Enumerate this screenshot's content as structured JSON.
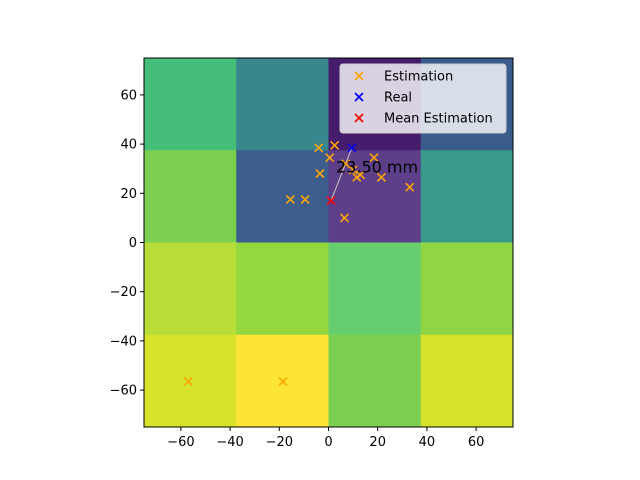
{
  "chart_data": {
    "type": "heatmap",
    "title": "",
    "xlabel": "",
    "ylabel": "",
    "xlim": [
      -75,
      75
    ],
    "ylim": [
      -75,
      75
    ],
    "x_ticks": [
      -60,
      -40,
      -20,
      0,
      20,
      40,
      60
    ],
    "y_ticks": [
      -60,
      -40,
      -20,
      0,
      20,
      40,
      60
    ],
    "x_tick_labels": [
      "−60",
      "−40",
      "−20",
      "0",
      "20",
      "40",
      "60"
    ],
    "y_tick_labels": [
      "−60",
      "−40",
      "−20",
      "0",
      "20",
      "40",
      "60"
    ],
    "grid": false,
    "heatmap": {
      "x_edges": [
        -75,
        -37.5,
        0,
        37.5,
        75
      ],
      "y_edges": [
        75,
        37.5,
        0,
        -37.5,
        -75
      ],
      "cell_colors": [
        [
          "#44be79",
          "#38878d",
          "#461c6d",
          "#3a5c8c"
        ],
        [
          "#7bd052",
          "#3d5e8d",
          "#5c3e89",
          "#389b8a"
        ],
        [
          "#b9dd38",
          "#94d840",
          "#66ce6e",
          "#8fd544"
        ],
        [
          "#d7e22b",
          "#fce534",
          "#7bd052",
          "#d7e22b"
        ]
      ]
    },
    "series": [
      {
        "name": "Estimation",
        "marker": "x",
        "color": "#ffa500",
        "points": [
          [
            -4,
            38.5
          ],
          [
            2.5,
            39.5
          ],
          [
            0.5,
            34.5
          ],
          [
            -3.5,
            28
          ],
          [
            7,
            32
          ],
          [
            10,
            29.5
          ],
          [
            13,
            27.5
          ],
          [
            11.5,
            26.5
          ],
          [
            18.5,
            34.5
          ],
          [
            21.5,
            26.5
          ],
          [
            33,
            22.5
          ],
          [
            -15.5,
            17.5
          ],
          [
            -9.5,
            17.5
          ],
          [
            6.5,
            10
          ],
          [
            -57,
            -56.5
          ],
          [
            -18.5,
            -56.5
          ]
        ]
      },
      {
        "name": "Real",
        "marker": "x",
        "color": "#0000ff",
        "points": [
          [
            9.5,
            38.5
          ]
        ]
      },
      {
        "name": "Mean Estimation",
        "marker": "x",
        "color": "#ff0000",
        "points": [
          [
            1,
            17
          ]
        ]
      }
    ],
    "annotation": {
      "text": "23.50 mm",
      "line_from": [
        1,
        17
      ],
      "line_to": [
        9.5,
        38.5
      ],
      "anchor": [
        5.5,
        30.5
      ]
    },
    "legend": {
      "placement": "upper-right",
      "entries": [
        "Estimation",
        "Real",
        "Mean Estimation"
      ]
    }
  }
}
